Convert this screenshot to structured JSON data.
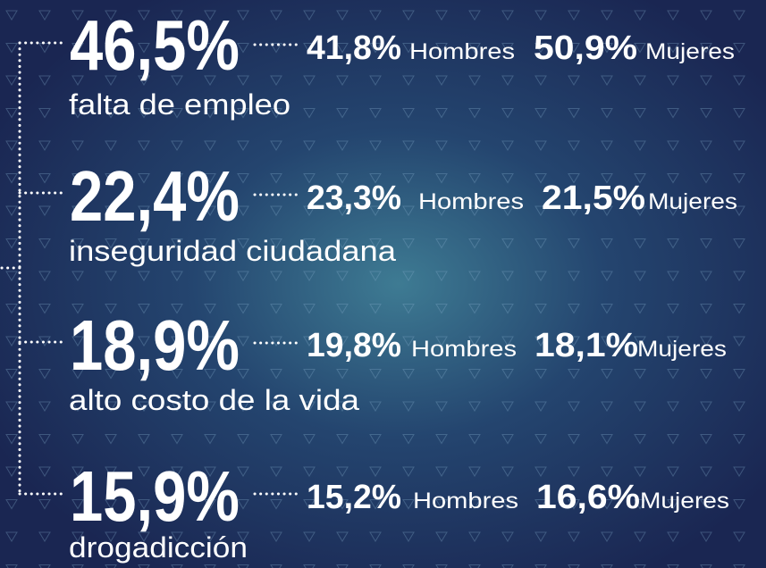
{
  "items": [
    {
      "total": "46,5%",
      "label": "falta de empleo",
      "male": "41,8%",
      "female": "50,9%"
    },
    {
      "total": "22,4%",
      "label": "inseguridad ciudadana",
      "male": "23,3%",
      "female": "21,5%"
    },
    {
      "total": "18,9%",
      "label": "alto costo de la vida",
      "male": "19,8%",
      "female": "18,1%"
    },
    {
      "total": "15,9%",
      "label": "drogadicción",
      "male": "15,2%",
      "female": "16,6%"
    }
  ],
  "male_label": "Hombres",
  "female_label": "Mujeres"
}
